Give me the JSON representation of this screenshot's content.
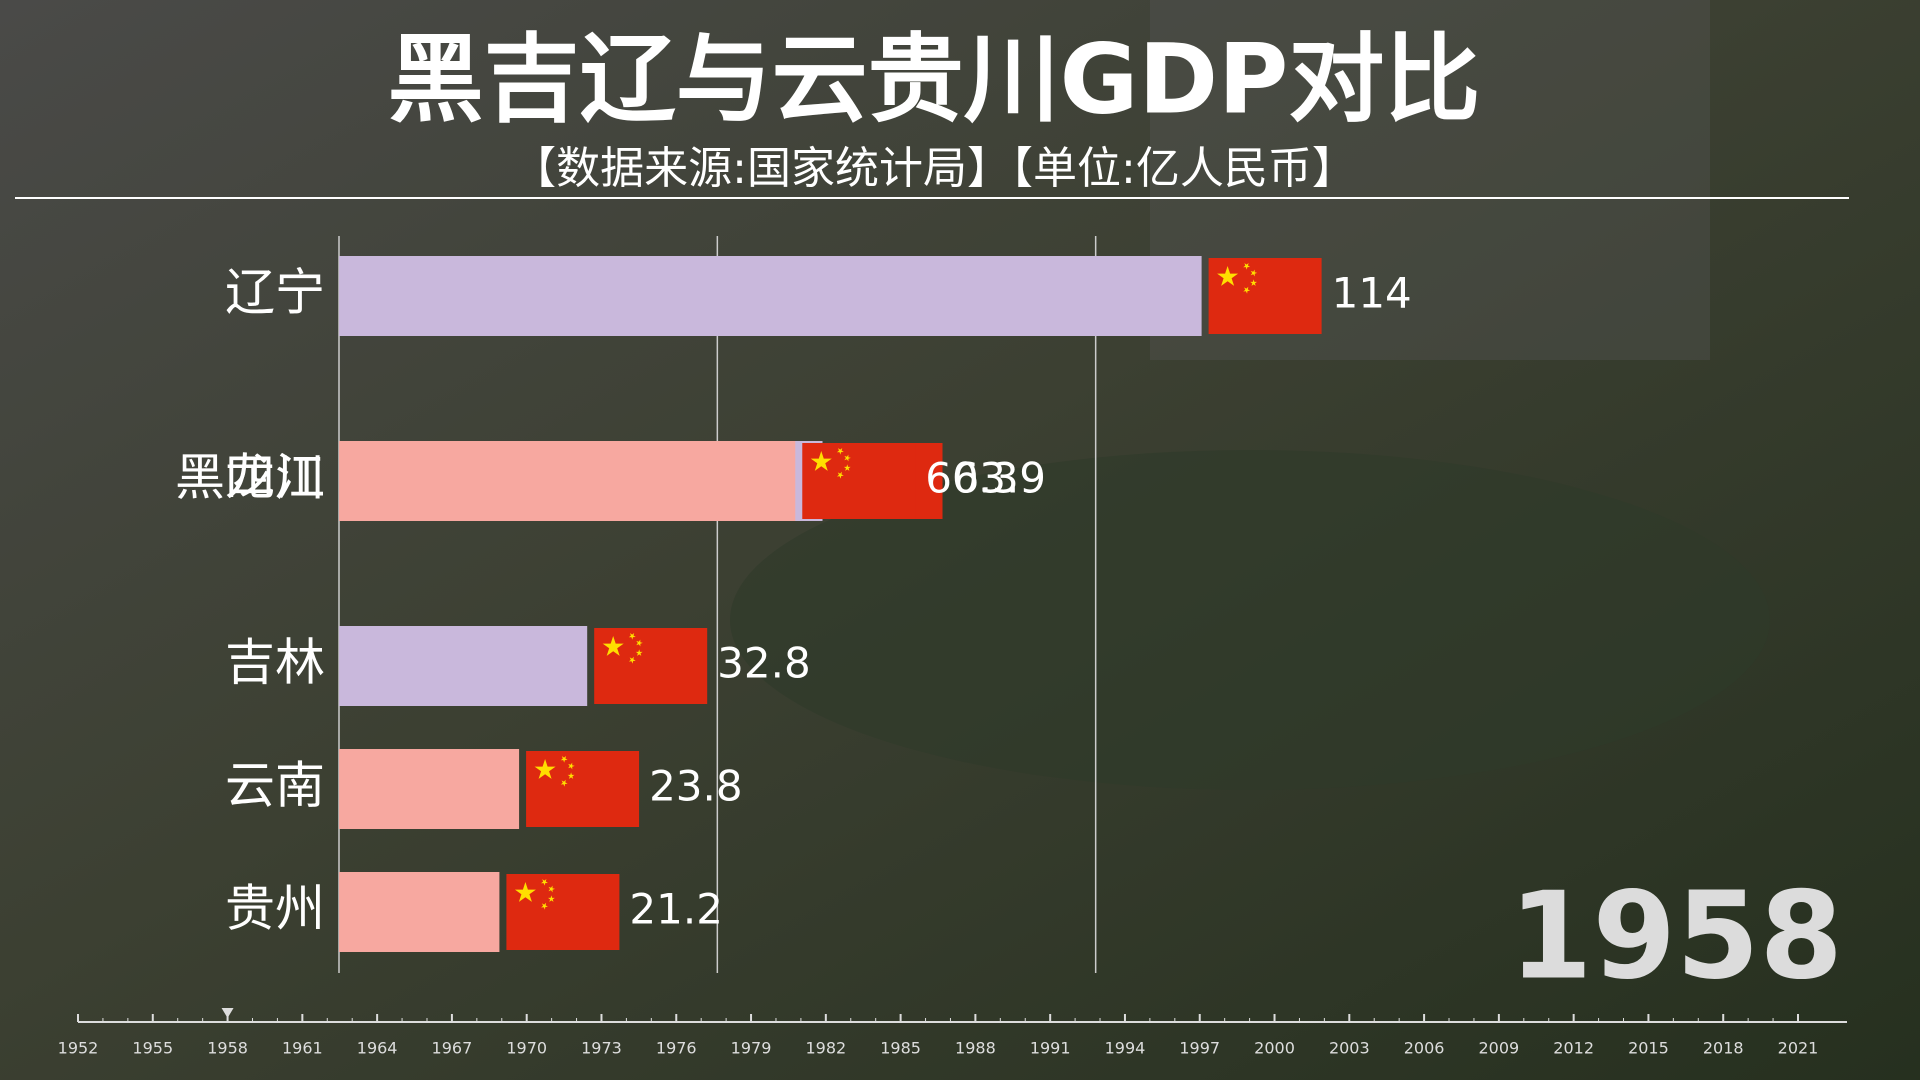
{
  "chart_data": {
    "type": "bar",
    "orientation": "horizontal",
    "title": "黑吉辽与云贵川GDP对比",
    "subtitle": "【数据来源:国家统计局】【单位:亿人民币】",
    "categories": [
      "辽宁",
      "黑龙江",
      "四川",
      "吉林",
      "云南",
      "贵州"
    ],
    "values": [
      114,
      63.9,
      60.3,
      32.8,
      23.8,
      21.2
    ],
    "colors": [
      "#c9b8dc",
      "#c9b8dc",
      "#f7a8a0",
      "#c9b8dc",
      "#f7a8a0",
      "#f7a8a0"
    ],
    "xlim": [
      0,
      120
    ],
    "xticks": [
      0,
      50,
      100
    ],
    "grid": true,
    "year_label": "1958"
  },
  "timeline": {
    "years": [
      "1952",
      "1955",
      "1958",
      "1961",
      "1964",
      "1967",
      "1970",
      "1973",
      "1976",
      "1979",
      "1982",
      "1985",
      "1988",
      "1991",
      "1994",
      "1997",
      "2000",
      "2003",
      "2006",
      "2009",
      "2012",
      "2015",
      "2018",
      "2021"
    ],
    "current": 2
  }
}
